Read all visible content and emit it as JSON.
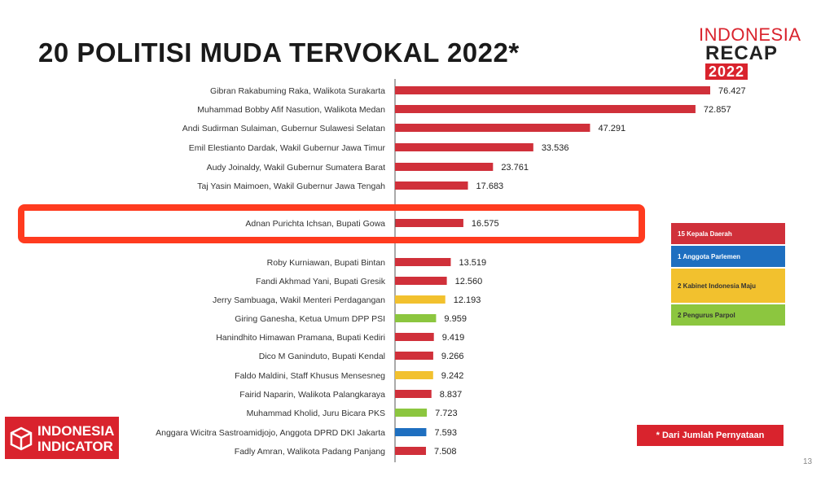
{
  "header": {
    "title": "20 POLITISI MUDA TERVOKAL 2022*",
    "logo_line1": "INDONESIA",
    "logo_line2": "RECAP",
    "logo_line3": "2022"
  },
  "colors": {
    "kepala_daerah": "#d0303a",
    "anggota_parlemen": "#1e6fc0",
    "kabinet": "#f2c12e",
    "parpol": "#8cc63f",
    "highlight": "#ff3b1f"
  },
  "legend": {
    "items": [
      {
        "label": "15 Kepala Daerah",
        "color": "#d0303a"
      },
      {
        "label": "1 Anggota Parlemen",
        "color": "#1e6fc0"
      },
      {
        "label": "2 Kabinet Indonesia Maju",
        "color": "#f2c12e"
      },
      {
        "label": "2 Pengurus Parpol",
        "color": "#8cc63f"
      }
    ]
  },
  "note": "* Dari Jumlah Pernyataan",
  "page_number": "13",
  "footer_logo": {
    "line1": "INDONESIA",
    "line2": "INDICATOR"
  },
  "chart_data": {
    "type": "bar",
    "orientation": "horizontal",
    "title": "20 POLITISI MUDA TERVOKAL 2022*",
    "highlighted_index": 7,
    "categories": [
      "Gibran Rakabuming Raka, Walikota Surakarta",
      "Muhammad Bobby Afif Nasution, Walikota Medan",
      "Andi Sudirman Sulaiman, Gubernur Sulawesi Selatan",
      "Emil Elestianto Dardak, Wakil Gubernur Jawa Timur",
      "Audy Joinaldy, Wakil Gubernur Sumatera Barat",
      "Taj Yasin Maimoen, Wakil Gubernur Jawa Tengah",
      "",
      "Adnan Purichta Ichsan, Bupati Gowa",
      "",
      "Roby Kurniawan, Bupati Bintan",
      "Fandi Akhmad Yani, Bupati Gresik",
      "Jerry Sambuaga, Wakil Menteri Perdagangan",
      "Giring Ganesha, Ketua Umum DPP PSI",
      "Hanindhito Himawan Pramana, Bupati Kediri",
      "Dico M Ganinduto, Bupati Kendal",
      "Faldo Maldini, Staff Khusus Mensesneg",
      "Fairid Naparin, Walikota Palangkaraya",
      "Muhammad Kholid, Juru Bicara PKS",
      "Anggara Wicitra Sastroamidjojo, Anggota DPRD DKI Jakarta",
      "Fadly Amran, Walikota Padang Panjang"
    ],
    "values": [
      76427,
      72857,
      47291,
      33536,
      23761,
      17683,
      null,
      16575,
      null,
      13519,
      12560,
      12193,
      9959,
      9419,
      9266,
      9242,
      8837,
      7723,
      7593,
      7508
    ],
    "value_labels": [
      "76.427",
      "72.857",
      "47.291",
      "33.536",
      "23.761",
      "17.683",
      "",
      "16.575",
      "",
      "13.519",
      "12.560",
      "12.193",
      "9.959",
      "9.419",
      "9.266",
      "9.242",
      "8.837",
      "7.723",
      "7.593",
      "7.508"
    ],
    "groups": [
      "kepala_daerah",
      "kepala_daerah",
      "kepala_daerah",
      "kepala_daerah",
      "kepala_daerah",
      "kepala_daerah",
      "kepala_daerah",
      "kepala_daerah",
      "kepala_daerah",
      "kepala_daerah",
      "kepala_daerah",
      "kabinet",
      "parpol",
      "kepala_daerah",
      "kepala_daerah",
      "kabinet",
      "kepala_daerah",
      "parpol",
      "anggota_parlemen",
      "kepala_daerah"
    ],
    "xlim": [
      0,
      80000
    ],
    "grid": false,
    "legend_position": "right"
  }
}
